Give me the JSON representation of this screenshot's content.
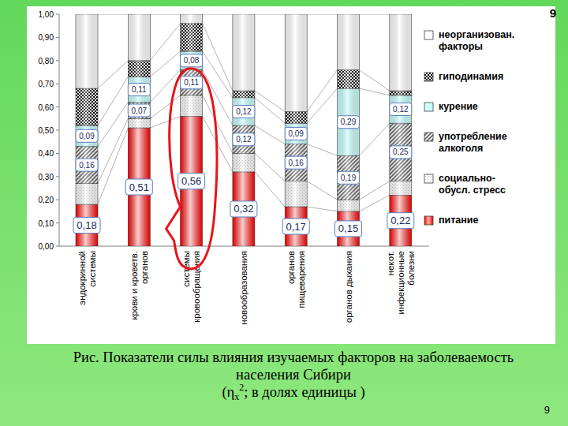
{
  "chart_data": {
    "type": "bar",
    "stacked": true,
    "title": "Рис. Показатели силы влияния изучаемых факторов на заболеваемость населения Сибири",
    "subtitle_parts": [
      "(η",
      "x",
      "2",
      "; в долях единицы )"
    ],
    "page_marks": [
      "9",
      "9"
    ],
    "categories": [
      "эндокринной\nсистемы",
      "крови и кроветв.\nорганов",
      "системы\nкровообращения",
      "новообразования",
      "органов\nпищеварения",
      "органов дыхания",
      "некот.\nинфекционные\nболезни"
    ],
    "ylim": [
      0,
      1
    ],
    "yticks": [
      {
        "value": 0,
        "label": "0,00"
      },
      {
        "value": 0.1,
        "label": "0,10"
      },
      {
        "value": 0.2,
        "label": "0,20"
      },
      {
        "value": 0.3,
        "label": "0,30"
      },
      {
        "value": 0.4,
        "label": "0,40"
      },
      {
        "value": 0.5,
        "label": "0,50"
      },
      {
        "value": 0.6,
        "label": "0,60"
      },
      {
        "value": 0.7,
        "label": "0,70"
      },
      {
        "value": 0.8,
        "label": "0,80"
      },
      {
        "value": 0.9,
        "label": "0,90"
      },
      {
        "value": 1,
        "label": "1,00"
      }
    ],
    "legend": "right",
    "series": [
      {
        "name": "питание",
        "color": "#ff0000",
        "values": [
          0.18,
          0.51,
          0.56,
          0.32,
          0.17,
          0.15,
          0.22
        ],
        "data_labels": true,
        "value_labels": [
          "0,18",
          "0,51",
          "0,56",
          "0,32",
          "0,17",
          "0,15",
          "0,22"
        ]
      },
      {
        "name": "социально-\nобусл. стресс",
        "color": "#c0c0c0",
        "values": [
          0.09,
          0.04,
          0.09,
          0.08,
          0.11,
          0.05,
          0.06
        ]
      },
      {
        "name": "употребление\nалкоголя",
        "color": "#606060",
        "values": [
          0.16,
          0.07,
          0.11,
          0.12,
          0.16,
          0.19,
          0.25
        ],
        "data_labels": true,
        "value_labels": [
          "0,16",
          "0,07",
          "0,11",
          "0,12",
          "0,16",
          "0,19",
          "0,25"
        ]
      },
      {
        "name": "курение",
        "color": "#ccffff",
        "values": [
          0.09,
          0.11,
          0.08,
          0.12,
          0.09,
          0.29,
          0.12
        ],
        "data_labels": true,
        "value_labels": [
          "0,09",
          "0,11",
          "0,08",
          "0,12",
          "0,09",
          "0,29",
          "0,12"
        ]
      },
      {
        "name": "гиподинамия",
        "color": "#000000",
        "values": [
          0.16,
          0.07,
          0.12,
          0.03,
          0.05,
          0.08,
          0.02
        ]
      },
      {
        "name": "неорганизован.\nфакторы",
        "color": "#ffffff",
        "values": [
          0.32,
          0.2,
          0.04,
          0.33,
          0.42,
          0.24,
          0.33
        ]
      }
    ]
  }
}
